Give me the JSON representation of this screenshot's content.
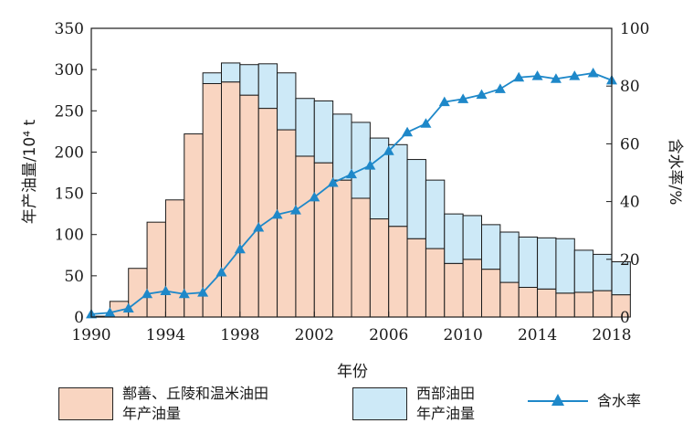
{
  "chart_data": {
    "type": "bar",
    "stacked": true,
    "x": [
      1990,
      1991,
      1992,
      1993,
      1994,
      1995,
      1996,
      1997,
      1998,
      1999,
      2000,
      2001,
      2002,
      2003,
      2004,
      2005,
      2006,
      2007,
      2008,
      2009,
      2010,
      2011,
      2012,
      2013,
      2014,
      2015,
      2016,
      2017,
      2018
    ],
    "series": [
      {
        "name": "鄯善、丘陵和温米油田\n年产油量",
        "axis": "left",
        "color": "#f9d5c1",
        "values": [
          1,
          19,
          59,
          115,
          142,
          222,
          283,
          285,
          269,
          253,
          227,
          195,
          187,
          166,
          144,
          119,
          110,
          95,
          83,
          65,
          70,
          58,
          42,
          36,
          34,
          29,
          30,
          32,
          27
        ]
      },
      {
        "name": "西部油田\n年产油量",
        "axis": "left",
        "color": "#cde9f7",
        "values": [
          0,
          0,
          0,
          0,
          0,
          0,
          13,
          23,
          37,
          54,
          69,
          70,
          75,
          80,
          92,
          98,
          99,
          96,
          83,
          60,
          53,
          54,
          61,
          61,
          62,
          66,
          51,
          44,
          40
        ]
      },
      {
        "name": "含水率",
        "axis": "right",
        "type": "line",
        "color": "#1e88c9",
        "marker": "triangle",
        "values": [
          1,
          1.5,
          3,
          8,
          9,
          8,
          8.5,
          15.5,
          23.5,
          31,
          35.5,
          37,
          41.5,
          46.5,
          49.5,
          52.5,
          57.5,
          64,
          67,
          74.5,
          75.5,
          77,
          79,
          83,
          83.5,
          82.5,
          83.5,
          84.5,
          82
        ]
      }
    ],
    "xlabel": "年份",
    "ylabel": "年产油量/10⁴ t",
    "y2label": "含水率/%",
    "xlim": [
      1990,
      2018
    ],
    "xticks": [
      1990,
      1994,
      1998,
      2002,
      2006,
      2010,
      2014,
      2018
    ],
    "ylim": [
      0,
      350
    ],
    "yticks": [
      0,
      50,
      100,
      150,
      200,
      250,
      300,
      350
    ],
    "y2lim": [
      0,
      100
    ],
    "y2ticks": [
      0,
      20,
      40,
      60,
      80,
      100
    ],
    "grid": false,
    "legend_position": "bottom"
  },
  "legend": [
    {
      "label": "鄯善、丘陵和温米油田\n年产油量"
    },
    {
      "label": "西部油田\n年产油量"
    },
    {
      "label": "含水率"
    }
  ]
}
